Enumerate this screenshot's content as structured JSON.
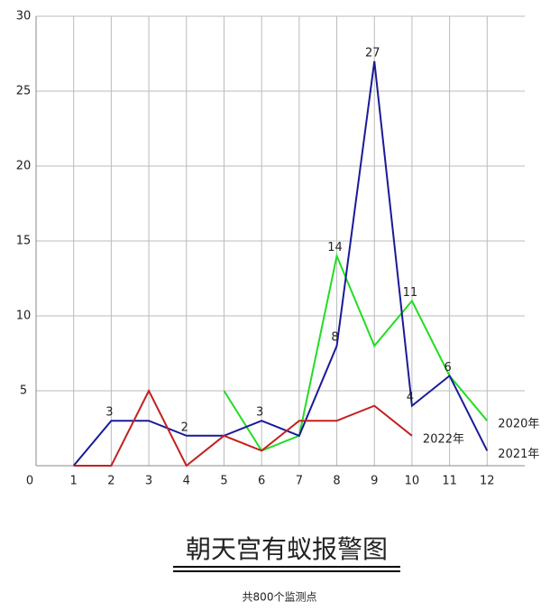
{
  "chart_data": {
    "type": "line",
    "title": "朝天宫有蚁报警图",
    "subtitle": "共800个监测点",
    "x": [
      1,
      2,
      3,
      4,
      5,
      6,
      7,
      8,
      9,
      10,
      11,
      12
    ],
    "series": [
      {
        "name": "2020年",
        "color": "#22dd22",
        "values": [
          null,
          null,
          null,
          null,
          5,
          1,
          2,
          14,
          8,
          11,
          6,
          3
        ],
        "labeled": [
          7,
          9
        ]
      },
      {
        "name": "2021年",
        "color": "#1a1a99",
        "values": [
          0,
          3,
          3,
          2,
          2,
          3,
          2,
          8,
          27,
          4,
          6,
          1
        ],
        "labeled": [
          1,
          3,
          5,
          7,
          8,
          9,
          10
        ]
      },
      {
        "name": "2022年",
        "color": "#c42020",
        "values": [
          0,
          0,
          5,
          0,
          2,
          1,
          3,
          3,
          4,
          2,
          null,
          null
        ],
        "labeled": []
      }
    ],
    "xlim": [
      0,
      13
    ],
    "xticks": [
      0,
      1,
      2,
      3,
      4,
      5,
      6,
      7,
      8,
      9,
      10,
      11,
      12
    ],
    "ylim": [
      0,
      30
    ],
    "yticks": [
      5,
      10,
      15,
      20,
      25,
      30
    ],
    "grid": true
  }
}
